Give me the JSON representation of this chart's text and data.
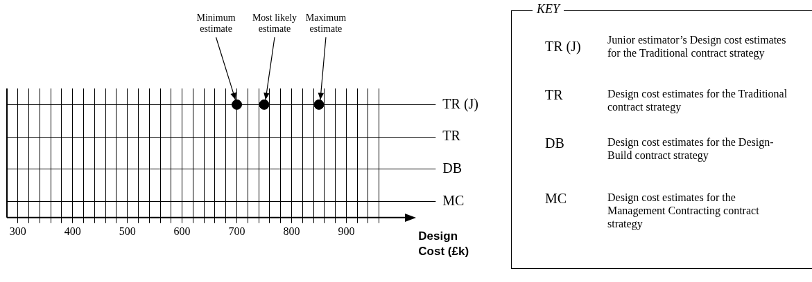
{
  "chart_data": [
    {
      "type": "scatter",
      "orientation": "horizontal",
      "xlabel": "Design Cost (£k)",
      "categories": [
        "TR (J)",
        "TR",
        "DB",
        "MC"
      ],
      "series": [
        {
          "color": "#000000",
          "values": [
            700,
            null,
            null,
            null
          ]
        },
        {
          "color": "#000000",
          "values": [
            750,
            null,
            null,
            null
          ]
        },
        {
          "color": "#000000",
          "values": [
            850,
            null,
            null,
            null
          ]
        }
      ],
      "xlim": [
        280,
        1000
      ],
      "xticks": [
        300,
        {
          "value": 320,
          "label": null
        },
        {
          "value": 340,
          "label": null
        },
        {
          "value": 360,
          "label": null
        },
        {
          "value": 380,
          "label": null
        },
        400,
        {
          "value": 420,
          "label": null
        },
        {
          "value": 440,
          "label": null
        },
        {
          "value": 460,
          "label": null
        },
        {
          "value": 480,
          "label": null
        },
        500,
        {
          "value": 520,
          "label": null
        },
        {
          "value": 540,
          "label": null
        },
        {
          "value": 560,
          "label": null
        },
        {
          "value": 580,
          "label": null
        },
        600,
        {
          "value": 620,
          "label": null
        },
        {
          "value": 640,
          "label": null
        },
        {
          "value": 660,
          "label": null
        },
        {
          "value": 680,
          "label": null
        },
        700,
        {
          "value": 720,
          "label": null
        },
        {
          "value": 740,
          "label": null
        },
        {
          "value": 760,
          "label": null
        },
        {
          "value": 780,
          "label": null
        },
        800,
        {
          "value": 820,
          "label": null
        },
        {
          "value": 840,
          "label": null
        },
        {
          "value": 860,
          "label": null
        },
        {
          "value": 880,
          "label": null
        },
        900,
        {
          "value": 920,
          "label": null
        },
        {
          "value": 940,
          "label": null
        },
        {
          "value": 960,
          "label": null
        }
      ],
      "annotations": [
        {
          "text": "Minimum estimate",
          "x": 700,
          "y": "TR (J)"
        },
        {
          "text": "Most likely estimate",
          "x": 750,
          "y": "TR (J)"
        },
        {
          "text": "Maximum estimate",
          "x": 850,
          "y": "TR (J)"
        }
      ],
      "marker": "circle",
      "grid": true,
      "legend": false
    },
    {
      "type": "other",
      "title": "KEY",
      "annotations": [
        "TR (J)",
        "Junior estimator’s Design cost estimates for the Traditional contract strategy",
        "TR",
        "Design cost estimates for the Traditional contract strategy",
        "DB",
        "Design cost estimates for the Design-Build contract strategy",
        "MC",
        "Design cost estimates for the Management Contracting contract strategy"
      ]
    }
  ]
}
